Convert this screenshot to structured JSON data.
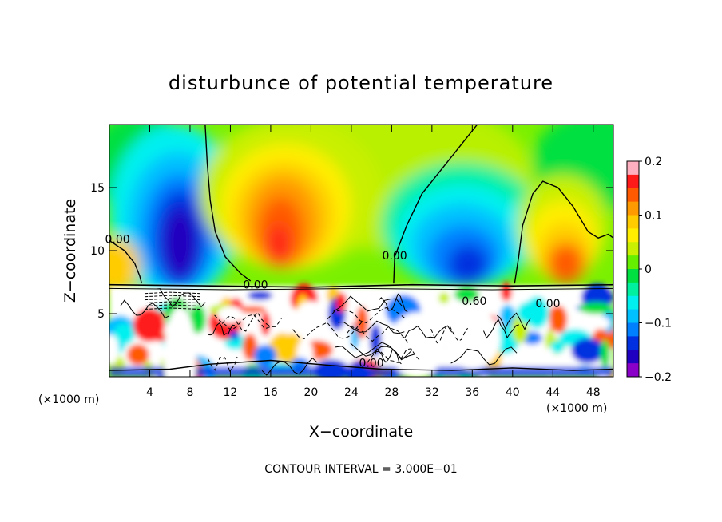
{
  "chart_data": {
    "type": "heatmap",
    "title": "disturbunce of potential temperature",
    "xlabel": "X−coordinate",
    "ylabel": "Z−coordinate",
    "x_unit_left": "(×1000 m)",
    "x_unit_right": "(×1000 m)",
    "xlim": [
      0,
      50
    ],
    "ylim": [
      0,
      20
    ],
    "x_ticks": [
      4,
      8,
      12,
      16,
      20,
      24,
      28,
      32,
      36,
      40,
      44,
      48
    ],
    "y_ticks": [
      5,
      10,
      15
    ],
    "footnote": "CONTOUR INTERVAL = 3.000E−01",
    "colorbar": {
      "min": -0.2,
      "max": 0.2,
      "ticks": [
        "0.2",
        "0.1",
        "0",
        "−0.1",
        "−0.2"
      ],
      "tick_values": [
        0.2,
        0.1,
        0,
        -0.1,
        -0.2
      ],
      "colors": [
        "#ffb0c0",
        "#ff1a1a",
        "#ff5a00",
        "#ff9a00",
        "#ffcc00",
        "#ffee00",
        "#c8f000",
        "#66f000",
        "#00e040",
        "#00f0a0",
        "#00f0f0",
        "#00c0ff",
        "#0080ff",
        "#0030e0",
        "#2000c0",
        "#8a00c8"
      ]
    },
    "contour_labels": [
      {
        "text": "0.00",
        "x": 0.8,
        "y": 10.6
      },
      {
        "text": "0.00",
        "x": 14.5,
        "y": 7.0
      },
      {
        "text": "0.00",
        "x": 28.3,
        "y": 9.3
      },
      {
        "text": "0.00",
        "x": 26.0,
        "y": 0.8
      },
      {
        "text": "0.60",
        "x": 36.2,
        "y": 5.7
      },
      {
        "text": "0.00",
        "x": 43.5,
        "y": 5.5
      }
    ],
    "features": [
      {
        "kind": "cold",
        "x": 7.0,
        "z": 11.0,
        "value": -0.2
      },
      {
        "kind": "warm",
        "x": 17.0,
        "z": 12.5,
        "value": 0.12
      },
      {
        "kind": "cold",
        "x": 35.0,
        "z": 10.5,
        "value": -0.18
      },
      {
        "kind": "warm",
        "x": 45.0,
        "z": 9.5,
        "value": 0.12
      }
    ]
  }
}
